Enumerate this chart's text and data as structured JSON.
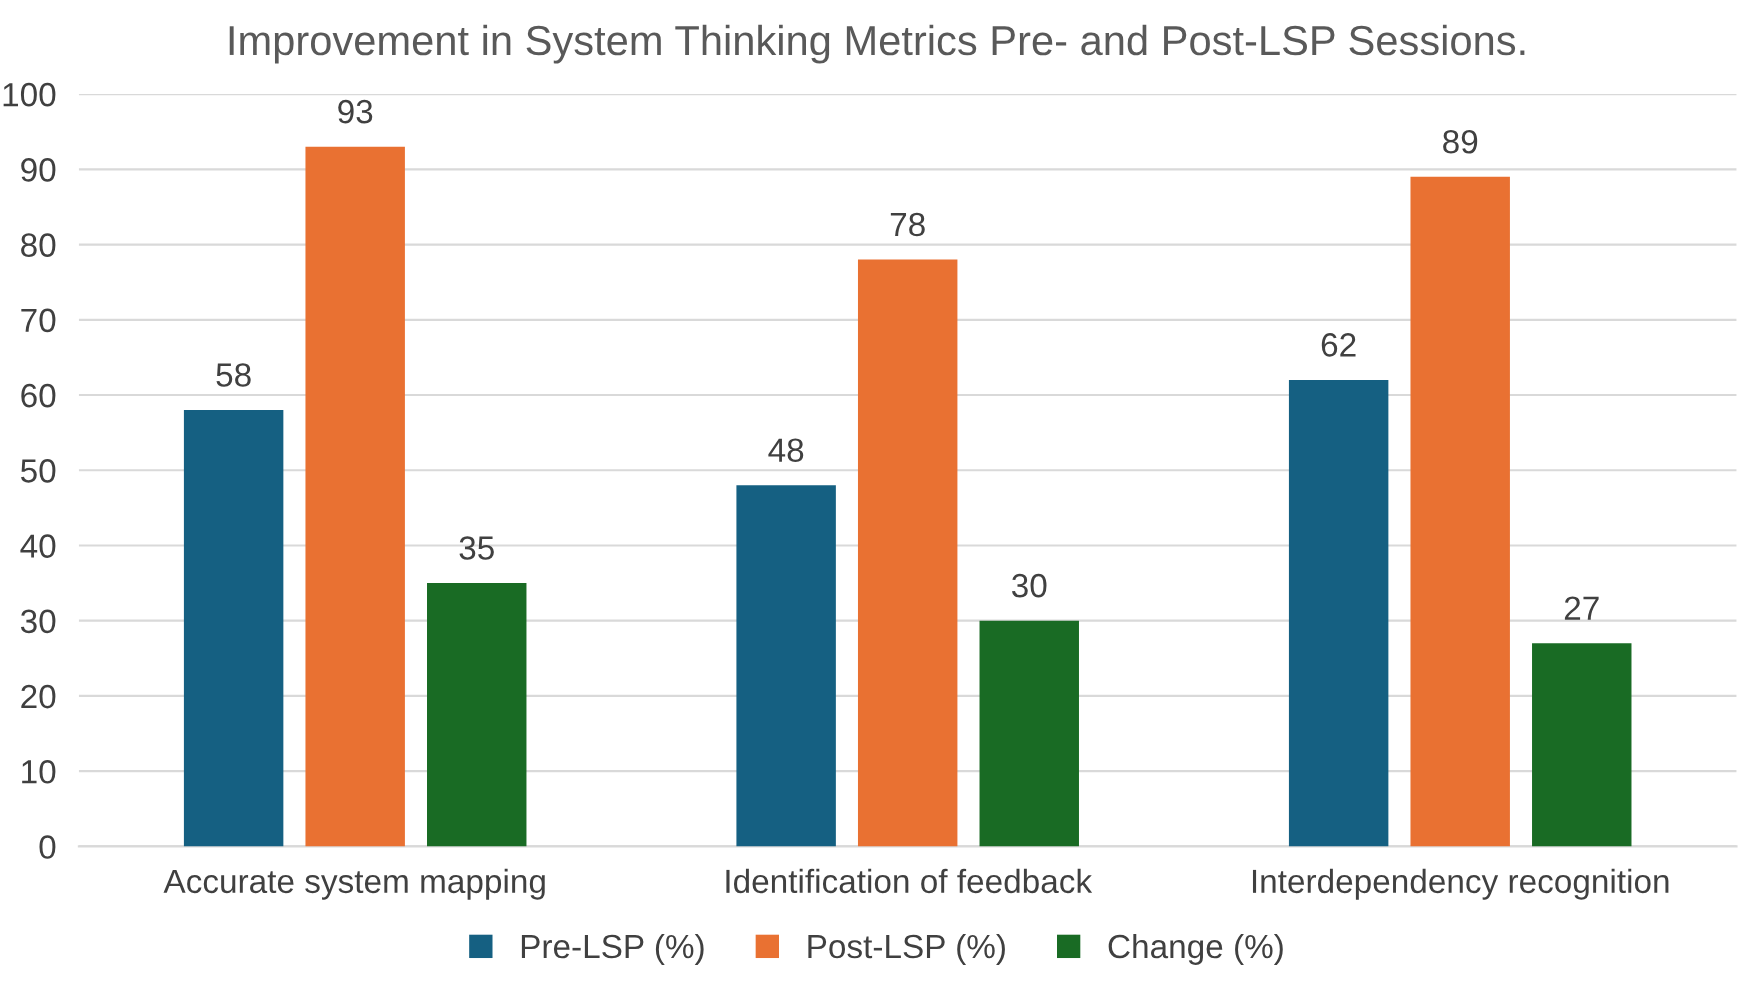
{
  "chart_data": {
    "type": "bar",
    "title": "Improvement in System Thinking Metrics Pre- and Post-LSP Sessions.",
    "categories": [
      "Accurate system mapping",
      "Identification of feedback",
      "Interdependency recognition"
    ],
    "series": [
      {
        "name": "Pre-LSP (%)",
        "color": "#156082",
        "values": [
          58,
          48,
          62
        ]
      },
      {
        "name": "Post-LSP (%)",
        "color": "#e97132",
        "values": [
          93,
          78,
          89
        ]
      },
      {
        "name": "Change (%)",
        "color": "#196b24",
        "values": [
          35,
          30,
          27
        ]
      }
    ],
    "ylim": [
      0,
      100
    ],
    "yticks": [
      0,
      10,
      20,
      30,
      40,
      50,
      60,
      70,
      80,
      90,
      100
    ],
    "grid": "y",
    "legend": "bottom",
    "data_labels": true
  }
}
